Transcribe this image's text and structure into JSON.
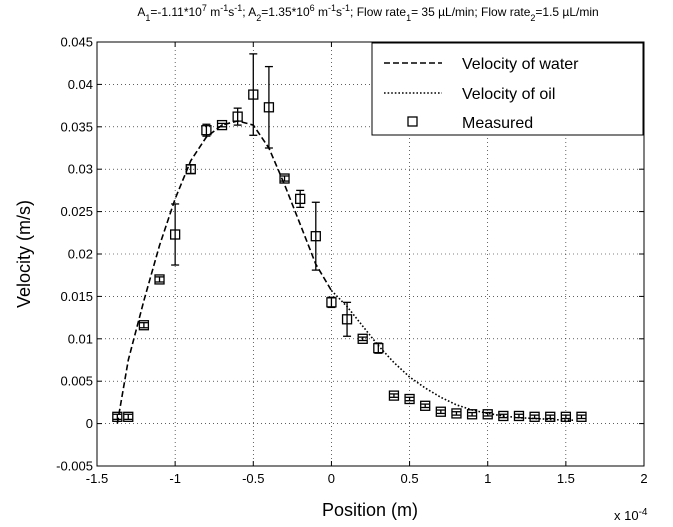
{
  "chart_data": {
    "type": "line",
    "title": {
      "parts": [
        {
          "t": "A"
        },
        {
          "t": "1",
          "sub": true
        },
        {
          "t": "=-1.11*10"
        },
        {
          "t": "7",
          "sup": true
        },
        {
          "t": " m"
        },
        {
          "t": "-1",
          "sup": true
        },
        {
          "t": "s"
        },
        {
          "t": "-1",
          "sup": true
        },
        {
          "t": "; A"
        },
        {
          "t": "2",
          "sub": true
        },
        {
          "t": "=1.35*10"
        },
        {
          "t": "6",
          "sup": true
        },
        {
          "t": " m"
        },
        {
          "t": "-1",
          "sup": true
        },
        {
          "t": "s"
        },
        {
          "t": "-1",
          "sup": true
        },
        {
          "t": "; Flow rate"
        },
        {
          "t": "1",
          "sub": true
        },
        {
          "t": "= 35 µL/min; Flow rate"
        },
        {
          "t": "2",
          "sub": true
        },
        {
          "t": "=1.5 µL/min"
        }
      ]
    },
    "xlabel": "Position (m)",
    "ylabel": "Velocity (m/s)",
    "x_multiplier": {
      "base": "x 10",
      "exp": "-4"
    },
    "xlim": [
      -1.5,
      2
    ],
    "ylim": [
      -0.005,
      0.045
    ],
    "x_ticks": [
      -1.5,
      -1,
      -0.5,
      0,
      0.5,
      1,
      1.5,
      2
    ],
    "x_tick_labels": [
      "-1.5",
      "-1",
      "-0.5",
      "0",
      "0.5",
      "1",
      "1.5",
      "2"
    ],
    "y_ticks": [
      -0.005,
      0,
      0.005,
      0.01,
      0.015,
      0.02,
      0.025,
      0.03,
      0.035,
      0.04,
      0.045
    ],
    "y_tick_labels": [
      "-0.005",
      "0",
      "0.005",
      "0.01",
      "0.015",
      "0.02",
      "0.025",
      "0.03",
      "0.035",
      "0.04",
      "0.045"
    ],
    "grid": true,
    "legend_position": "top-right",
    "series": [
      {
        "name": "Velocity of water",
        "style": "dashed",
        "x": [
          -1.37,
          -1.3,
          -1.2,
          -1.1,
          -1.0,
          -0.9,
          -0.8,
          -0.7,
          -0.6,
          -0.5,
          -0.4,
          -0.3,
          -0.2,
          -0.1,
          0.0
        ],
        "y": [
          0.0,
          0.0075,
          0.0145,
          0.021,
          0.0265,
          0.031,
          0.0338,
          0.0352,
          0.0357,
          0.0352,
          0.0325,
          0.0282,
          0.0235,
          0.0188,
          0.0157
        ]
      },
      {
        "name": "Velocity of oil",
        "style": "dotted",
        "x": [
          0.0,
          0.1,
          0.2,
          0.3,
          0.4,
          0.5,
          0.6,
          0.7,
          0.8,
          0.9,
          1.0,
          1.1,
          1.2,
          1.3,
          1.4,
          1.5,
          1.55
        ],
        "y": [
          0.0157,
          0.0138,
          0.0115,
          0.0092,
          0.0072,
          0.0055,
          0.0042,
          0.0031,
          0.0022,
          0.0016,
          0.0012,
          0.0009,
          0.0007,
          0.0006,
          0.0005,
          0.0004,
          0.0004
        ]
      },
      {
        "name": "Measured",
        "style": "markers",
        "x": [
          -1.37,
          -1.3,
          -1.2,
          -1.1,
          -1.0,
          -0.9,
          -0.8,
          -0.7,
          -0.6,
          -0.5,
          -0.4,
          -0.3,
          -0.2,
          -0.1,
          0.0,
          0.1,
          0.2,
          0.3,
          0.4,
          0.5,
          0.6,
          0.7,
          0.8,
          0.9,
          1.0,
          1.1,
          1.2,
          1.3,
          1.4,
          1.5,
          1.6
        ],
        "y": [
          0.0008,
          0.0008,
          0.0116,
          0.017,
          0.0223,
          0.03,
          0.0346,
          0.0352,
          0.0362,
          0.0388,
          0.0373,
          0.0289,
          0.0265,
          0.0221,
          0.0143,
          0.0123,
          0.01,
          0.0089,
          0.0033,
          0.0029,
          0.0021,
          0.0014,
          0.0012,
          0.0011,
          0.0011,
          0.0009,
          0.0009,
          0.0008,
          0.0008,
          0.0008,
          0.0008
        ],
        "err": [
          0.0003,
          0.0003,
          0.0003,
          0.0003,
          0.0036,
          0.0005,
          0.0007,
          0.0002,
          0.001,
          0.0048,
          0.0048,
          0.0003,
          0.001,
          0.004,
          0.0006,
          0.002,
          0.0002,
          0.0006,
          0.0002,
          0.0002,
          0.0002,
          0.0002,
          0.0002,
          0.0002,
          0.0002,
          0.0002,
          0.0002,
          0.0002,
          0.0002,
          0.0002,
          0.0002
        ]
      }
    ]
  }
}
